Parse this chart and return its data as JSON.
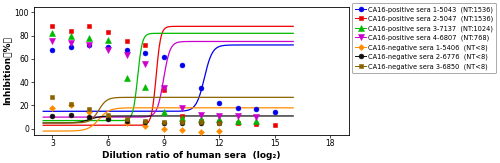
{
  "series": [
    {
      "label": "CA16-positive sera 1-5043  (NT:1536)",
      "color": "#0000EE",
      "marker": "o",
      "x": [
        3,
        4,
        5,
        6,
        7,
        8,
        9,
        10,
        11,
        12,
        13,
        14,
        15
      ],
      "y": [
        68,
        70,
        72,
        70,
        68,
        65,
        62,
        55,
        35,
        22,
        18,
        17,
        14
      ],
      "fit_top": 72,
      "fit_bottom": 15,
      "fit_ec50": 11.2,
      "fit_hill": 2.0
    },
    {
      "label": "CA16-positive sera 2-5047  (NT:1536)",
      "color": "#EE0000",
      "marker": "s",
      "x": [
        3,
        4,
        5,
        6,
        7,
        8,
        9,
        10,
        11,
        12,
        13,
        14,
        15
      ],
      "y": [
        88,
        84,
        88,
        83,
        75,
        72,
        33,
        11,
        7,
        6,
        5,
        4,
        3
      ],
      "fit_top": 88,
      "fit_bottom": 3,
      "fit_ec50": 8.6,
      "fit_hill": 3.5
    },
    {
      "label": "CA16-positive sera 3-7137  (NT:1024)",
      "color": "#00BB00",
      "marker": "^",
      "x": [
        3,
        4,
        5,
        6,
        7,
        8,
        9,
        10,
        11,
        12,
        13,
        14
      ],
      "y": [
        82,
        80,
        78,
        76,
        44,
        36,
        14,
        9,
        8,
        8,
        7,
        7
      ],
      "fit_top": 82,
      "fit_bottom": 7,
      "fit_ec50": 7.6,
      "fit_hill": 3.5
    },
    {
      "label": "CA16-positive sera 4-6807  (NT:768)",
      "color": "#CC00CC",
      "marker": "v",
      "x": [
        3,
        4,
        5,
        6,
        7,
        8,
        9,
        10,
        11,
        12,
        13,
        14
      ],
      "y": [
        75,
        74,
        72,
        68,
        63,
        56,
        35,
        18,
        12,
        11,
        11,
        10
      ],
      "fit_top": 75,
      "fit_bottom": 10,
      "fit_ec50": 9.0,
      "fit_hill": 2.5
    },
    {
      "label": "CA16-negative sera 1-5406  (NT<8)",
      "color": "#FF8C00",
      "marker": "D",
      "x": [
        3,
        4,
        5,
        6,
        7,
        8,
        9,
        10,
        11,
        12
      ],
      "y": [
        18,
        20,
        14,
        10,
        5,
        2,
        0,
        -1,
        -3,
        -2
      ],
      "fit_top": 18,
      "fit_bottom": -2,
      "fit_ec50": 5.5,
      "fit_hill": 1.5
    },
    {
      "label": "CA16-negative sera 2-6776  (NT<8)",
      "color": "#111111",
      "marker": "o",
      "x": [
        3,
        4,
        5,
        6,
        7,
        8,
        9,
        10,
        11,
        12
      ],
      "y": [
        11,
        12,
        10,
        8,
        7,
        6,
        5,
        5,
        5,
        5
      ],
      "fit_top": 11,
      "fit_bottom": 5,
      "fit_ec50": 5.0,
      "fit_hill": 1.5
    },
    {
      "label": "CA16-negative sera 3-6850  (NT<8)",
      "color": "#8B6400",
      "marker": "s",
      "x": [
        3,
        4,
        5,
        6,
        7,
        8,
        9,
        10,
        11,
        12
      ],
      "y": [
        27,
        21,
        17,
        12,
        8,
        7,
        6,
        6,
        6,
        5
      ],
      "fit_top": 27,
      "fit_bottom": 5,
      "fit_ec50": 5.5,
      "fit_hill": 2.0
    }
  ],
  "xlabel": "Dilution ratio of human sera  (log₂)",
  "ylabel": "Inhibition（%）",
  "xlim": [
    2,
    19
  ],
  "ylim": [
    -5,
    105
  ],
  "xticks": [
    3,
    6,
    9,
    12,
    15,
    18
  ],
  "yticks": [
    0,
    20,
    40,
    60,
    80,
    100
  ],
  "figwidth": 5.0,
  "figheight": 1.63,
  "dpi": 100
}
